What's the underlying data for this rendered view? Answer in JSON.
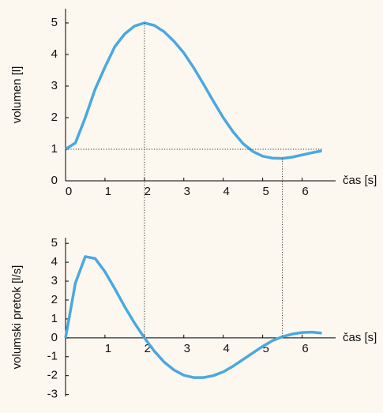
{
  "chart_data": [
    {
      "type": "line",
      "y_label": "volumen [l]",
      "x_label": "čas [s]",
      "x": [
        0,
        0.25,
        0.5,
        0.75,
        1,
        1.25,
        1.5,
        1.75,
        2,
        2.25,
        2.5,
        2.75,
        3,
        3.25,
        3.5,
        3.75,
        4,
        4.25,
        4.5,
        4.75,
        5,
        5.25,
        5.5,
        5.75,
        6,
        6.25,
        6.5
      ],
      "series": [
        {
          "color": "#4aa8e0",
          "values": [
            1.0,
            1.2,
            2.0,
            2.9,
            3.6,
            4.25,
            4.65,
            4.9,
            5.0,
            4.92,
            4.72,
            4.42,
            4.05,
            3.58,
            3.06,
            2.52,
            2.0,
            1.55,
            1.18,
            0.93,
            0.78,
            0.72,
            0.71,
            0.75,
            0.82,
            0.89,
            0.95
          ]
        }
      ],
      "xlim": [
        0,
        6.85
      ],
      "ylim": [
        0,
        5.45
      ],
      "xticks": [
        0,
        1,
        2,
        3,
        4,
        5,
        6
      ],
      "yticks": [
        0,
        1,
        2,
        3,
        4,
        5
      ]
    },
    {
      "type": "line",
      "y_label": "volumski pretok [l/s]",
      "x_label": "čas [s]",
      "x": [
        0,
        0.25,
        0.5,
        0.75,
        1,
        1.25,
        1.5,
        1.75,
        2,
        2.25,
        2.5,
        2.75,
        3,
        3.25,
        3.5,
        3.75,
        4,
        4.25,
        4.5,
        4.75,
        5,
        5.25,
        5.5,
        5.75,
        6,
        6.25,
        6.5
      ],
      "series": [
        {
          "color": "#4aa8e0",
          "values": [
            0,
            2.9,
            4.3,
            4.2,
            3.5,
            2.6,
            1.65,
            0.78,
            0,
            -0.7,
            -1.28,
            -1.7,
            -1.98,
            -2.1,
            -2.1,
            -2.0,
            -1.8,
            -1.5,
            -1.15,
            -0.8,
            -0.45,
            -0.15,
            0.06,
            0.2,
            0.28,
            0.3,
            0.25
          ]
        }
      ],
      "xlim": [
        0,
        6.85
      ],
      "ylim": [
        -3.1,
        5.3
      ],
      "xticks": [
        1,
        2,
        3,
        4,
        5,
        6
      ],
      "yticks": [
        -3,
        -2,
        -1,
        0,
        1,
        2,
        3,
        4,
        5
      ]
    }
  ]
}
